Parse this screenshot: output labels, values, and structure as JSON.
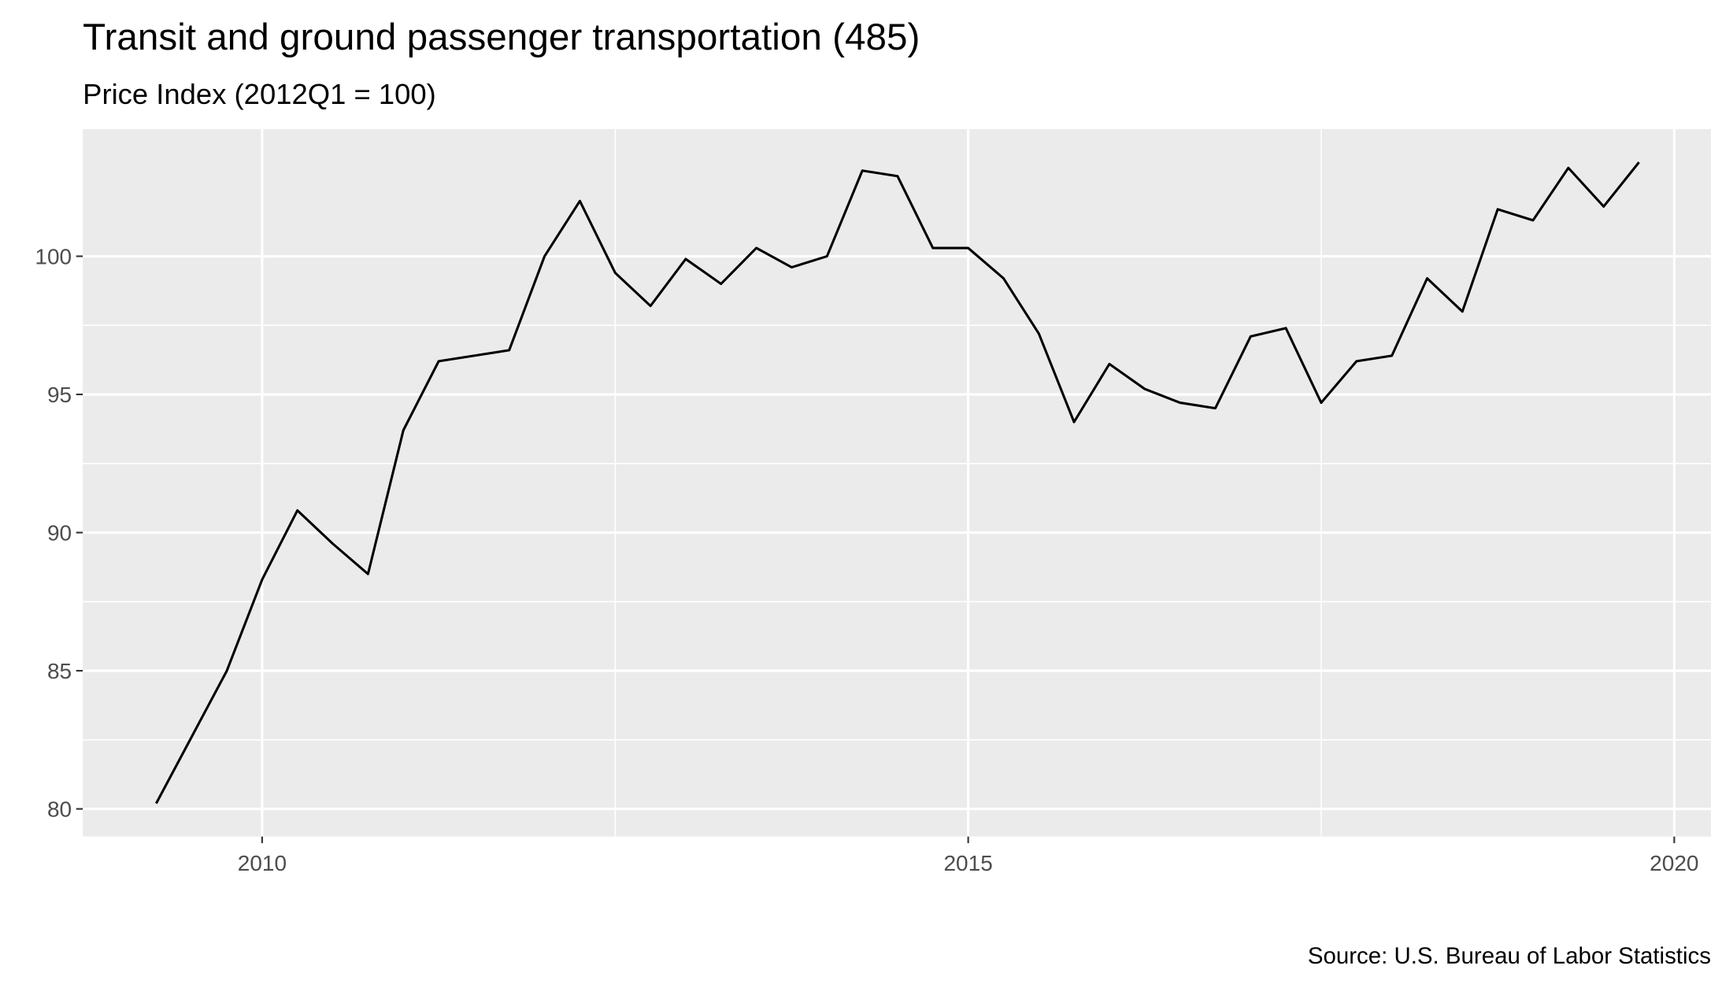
{
  "chart_data": {
    "type": "line",
    "title": "Transit and ground passenger transportation (485)",
    "subtitle": "Price Index (2012Q1 = 100)",
    "caption": "Source: U.S. Bureau of Labor Statistics",
    "xlabel": "",
    "ylabel": "",
    "xlim": [
      2008.73,
      2020.26
    ],
    "ylim": [
      79.0,
      104.6
    ],
    "x_ticks": [
      2010,
      2015,
      2020
    ],
    "x_tick_labels": [
      "2010",
      "2015",
      "2020"
    ],
    "y_ticks": [
      80,
      85,
      90,
      95,
      100
    ],
    "y_tick_labels": [
      "80",
      "85",
      "90",
      "95",
      "100"
    ],
    "grid": true,
    "background": "#EBEBEB",
    "line_color": "#000000",
    "x": [
      2009.25,
      2009.5,
      2009.75,
      2010.0,
      2010.25,
      2010.5,
      2010.75,
      2011.0,
      2011.25,
      2011.5,
      2011.75,
      2012.0,
      2012.25,
      2012.5,
      2012.75,
      2013.0,
      2013.25,
      2013.5,
      2013.75,
      2014.0,
      2014.25,
      2014.5,
      2014.75,
      2015.0,
      2015.25,
      2015.5,
      2015.75,
      2016.0,
      2016.25,
      2016.5,
      2016.75,
      2017.0,
      2017.25,
      2017.5,
      2017.75,
      2018.0,
      2018.25,
      2018.5,
      2018.75,
      2019.0,
      2019.25,
      2019.5,
      2019.75
    ],
    "values": [
      80.2,
      82.6,
      85.0,
      88.3,
      90.8,
      89.6,
      88.5,
      93.7,
      96.2,
      96.4,
      96.6,
      100.0,
      102.0,
      99.4,
      98.2,
      99.9,
      99.0,
      100.3,
      99.6,
      100.0,
      103.1,
      102.9,
      100.3,
      100.3,
      99.2,
      97.2,
      94.0,
      96.1,
      95.2,
      94.7,
      94.5,
      97.1,
      97.4,
      94.7,
      96.2,
      96.4,
      99.2,
      98.0,
      101.7,
      101.3,
      103.2,
      101.8,
      103.4
    ]
  }
}
